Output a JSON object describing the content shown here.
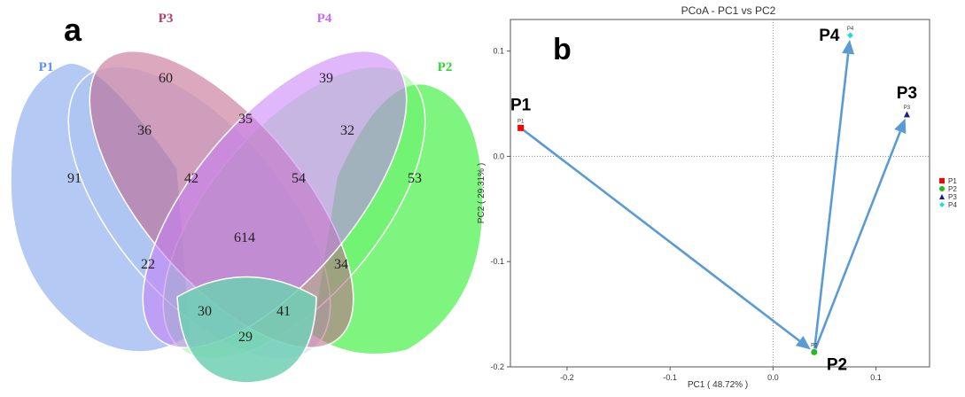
{
  "panel_labels": {
    "a": "a",
    "b": "b"
  },
  "venn": {
    "sets": [
      {
        "name": "P1",
        "color": "#5b8ff9"
      },
      {
        "name": "P3",
        "color": "#b23a6e"
      },
      {
        "name": "P4",
        "color": "#c76bff"
      },
      {
        "name": "P2",
        "color": "#2fd72f"
      }
    ],
    "regions": [
      {
        "sets": [
          "P3"
        ],
        "count": "60"
      },
      {
        "sets": [
          "P4"
        ],
        "count": "39"
      },
      {
        "sets": [
          "P1"
        ],
        "count": "91"
      },
      {
        "sets": [
          "P2"
        ],
        "count": "53"
      },
      {
        "sets": [
          "P1",
          "P3"
        ],
        "count": "36"
      },
      {
        "sets": [
          "P3",
          "P4"
        ],
        "count": "35"
      },
      {
        "sets": [
          "P4",
          "P2"
        ],
        "count": "32"
      },
      {
        "sets": [
          "P1",
          "P3",
          "P4"
        ],
        "count": "42"
      },
      {
        "sets": [
          "P3",
          "P4",
          "P2"
        ],
        "count": "54"
      },
      {
        "sets": [
          "P1",
          "P3",
          "P4",
          "P2"
        ],
        "count": "614"
      },
      {
        "sets": [
          "P1",
          "P4"
        ],
        "count": "22"
      },
      {
        "sets": [
          "P3",
          "P2"
        ],
        "count": "34"
      },
      {
        "sets": [
          "P1",
          "P4",
          "P2"
        ],
        "count": "30"
      },
      {
        "sets": [
          "P1",
          "P3",
          "P2"
        ],
        "count": "41"
      },
      {
        "sets": [
          "P1",
          "P2"
        ],
        "count": "29"
      }
    ]
  },
  "chart_data": {
    "type": "scatter",
    "title": "PCoA - PC1 vs PC2",
    "xlabel": "PC1 ( 48.72% )",
    "ylabel": "PC2 ( 29.31% )",
    "xlim": [
      -0.255,
      0.152
    ],
    "ylim": [
      -0.2,
      0.13
    ],
    "xticks": [
      "-0.2",
      "-0.1",
      "0.0",
      "0.1"
    ],
    "xtick_values": [
      -0.2,
      -0.1,
      0.0,
      0.1
    ],
    "yticks": [
      "0.1",
      "0.0",
      "-0.1",
      "-0.2"
    ],
    "ytick_values": [
      0.1,
      0.0,
      -0.1,
      -0.2
    ],
    "points": [
      {
        "name": "P1",
        "x": -0.245,
        "y": 0.027,
        "color": "#ff0000",
        "marker": "square",
        "annotation": "P1",
        "annotation_pos": "above-left"
      },
      {
        "name": "P2",
        "x": 0.04,
        "y": -0.186,
        "color": "#22bb22",
        "marker": "circle",
        "annotation": "P2",
        "annotation_pos": "below-right"
      },
      {
        "name": "P3",
        "x": 0.13,
        "y": 0.04,
        "color": "#1a1aa0",
        "marker": "triangle",
        "annotation": "P3",
        "annotation_pos": "above"
      },
      {
        "name": "P4",
        "x": 0.075,
        "y": 0.115,
        "color": "#22dddd",
        "marker": "diamond",
        "annotation": "P4",
        "annotation_pos": "left"
      }
    ],
    "arrows": [
      {
        "from": "P1",
        "to": "P2"
      },
      {
        "from": "P2",
        "to": "P4"
      },
      {
        "from": "P2",
        "to": "P3"
      }
    ],
    "arrow_color": "#5b9bd5",
    "legend": [
      "P1",
      "P2",
      "P3",
      "P4"
    ],
    "legend_position": "right"
  }
}
